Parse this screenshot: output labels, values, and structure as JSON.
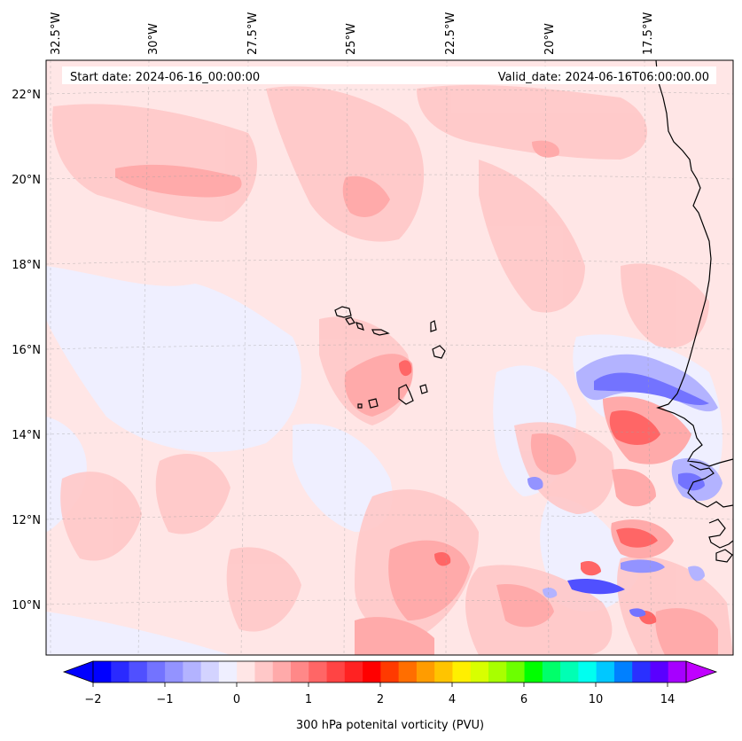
{
  "header": {
    "start_date": "Start date: 2024-06-16_00:00:00",
    "valid_date": "Valid_date: 2024-06-16T06:00:00.00"
  },
  "axes": {
    "lon_labels": [
      "32.5°W",
      "30°W",
      "27.5°W",
      "25°W",
      "22.5°W",
      "20°W",
      "17.5°W"
    ],
    "lat_labels": [
      "22°N",
      "20°N",
      "18°N",
      "16°N",
      "14°N",
      "12°N",
      "10°N"
    ]
  },
  "colorbar": {
    "label": "300 hPa potenital vorticity (PVU)",
    "tick_labels": [
      "−2",
      "−1",
      "0",
      "1",
      "2",
      "4",
      "6",
      "10",
      "14"
    ],
    "colors": [
      "#0000ff",
      "#2a2aff",
      "#5050ff",
      "#7373ff",
      "#9393ff",
      "#b3b3ff",
      "#d3d3ff",
      "#efefff",
      "#ffe6e6",
      "#ffc8c8",
      "#ffaaaa",
      "#ff8888",
      "#ff6666",
      "#ff4444",
      "#ff2222",
      "#ff0000",
      "#ff3a00",
      "#ff6e00",
      "#ff9c00",
      "#ffc400",
      "#ffef00",
      "#d8ff00",
      "#a8ff00",
      "#6cff00",
      "#00ff00",
      "#00ff6a",
      "#00ffb4",
      "#00fff0",
      "#00c8ff",
      "#0080ff",
      "#2a30ff",
      "#5a00ff",
      "#a600ff"
    ],
    "extend_low_color": "#0000ff",
    "extend_high_color": "#c000ff"
  }
}
